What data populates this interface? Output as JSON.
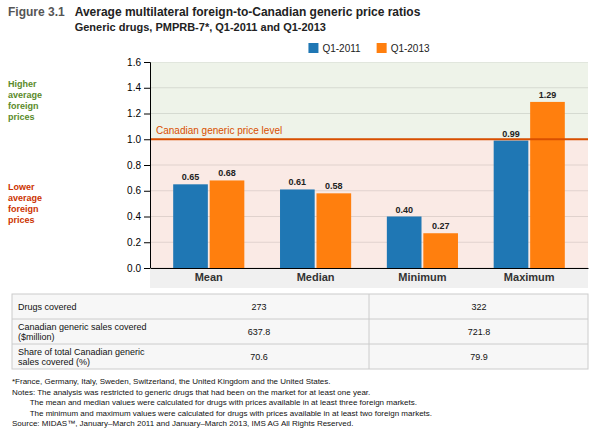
{
  "chart_data": {
    "type": "bar",
    "figure_label": "Figure 3.1",
    "title": "Average multilateral foreign-to-Canadian generic price ratios",
    "subtitle": "Generic drugs, PMPRB-7*, Q1-2011 and Q1-2013",
    "categories": [
      "Mean",
      "Median",
      "Minimum",
      "Maximum"
    ],
    "series": [
      {
        "name": "Q1-2011",
        "values": [
          0.65,
          0.61,
          0.4,
          0.99
        ],
        "value_labels": [
          "0.65",
          "0.61",
          "0.40",
          "0.99"
        ]
      },
      {
        "name": "Q1-2013",
        "values": [
          0.68,
          0.58,
          0.27,
          1.29
        ]
      }
    ],
    "ylim": [
      0.0,
      1.6
    ],
    "yticks": [
      {
        "value": 0.0,
        "label": "0.0"
      },
      0.2,
      0.4,
      0.6,
      0.8,
      {
        "value": 1.0,
        "label": "1.0"
      },
      1.2,
      1.4,
      1.6
    ],
    "grid": true,
    "legend": "top",
    "data_labels": true,
    "reference_lines": [
      {
        "value": 1.0,
        "label": "Canadian generic price level",
        "color": "#D94F00"
      }
    ],
    "regions": [
      {
        "from": 1.0,
        "to": 1.6,
        "label": "Higher\naverage\nforeign\nprices",
        "color": "#5A8A2A"
      },
      {
        "from": 0.0,
        "to": 1.0,
        "label": "Lower\naverage\nforeign\nprices",
        "color": "#CC3300"
      }
    ],
    "table": [
      {
        "label": "Drugs covered",
        "values": [
          273,
          322
        ]
      },
      {
        "label": "Canadian generic sales covered\n($million)",
        "values": [
          637.8,
          721.8
        ]
      },
      {
        "label": "Share of total Canadian generic\nsales covered (%)",
        "values": [
          70.6,
          79.9
        ]
      }
    ],
    "notes": [
      "*France, Germany, Italy, Sweden, Switzerland, the United Kingdom and the United States.",
      "Notes: The analysis was restricted to generic drugs that had been on the market for at least one year.",
      "        The mean and median values were calculated for drugs with prices available in at least three foreign markets.",
      "        The minimum and maximum values were calculated for drugs with prices available in at least two foreign markets.",
      "Source: MIDAS™, January–March 2011 and January–March 2013, IMS AG All Rights Reserved."
    ]
  }
}
